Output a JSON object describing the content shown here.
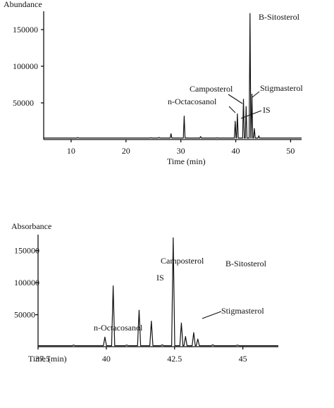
{
  "chart_data": [
    {
      "type": "line",
      "title": "",
      "ylabel": "Abundance",
      "xlabel": "Time (min)",
      "xlim": [
        5,
        52
      ],
      "ylim": [
        0,
        175000
      ],
      "x_ticks": [
        10,
        20,
        30,
        40,
        50
      ],
      "y_ticks": [
        50000,
        100000,
        150000
      ],
      "x_tick_labels": [
        "10",
        "20",
        "30",
        "40",
        "50"
      ],
      "y_tick_labels": [
        "50000",
        "100000",
        "150000"
      ],
      "baseline": 2000,
      "peaks": [
        {
          "x": 11.2,
          "y": 2800
        },
        {
          "x": 24.5,
          "y": 2600
        },
        {
          "x": 26.0,
          "y": 3000
        },
        {
          "x": 28.2,
          "y": 8000
        },
        {
          "x": 30.6,
          "y": 32000
        },
        {
          "x": 33.6,
          "y": 4000
        },
        {
          "x": 36.6,
          "y": 2500
        },
        {
          "x": 39.9,
          "y": 25000,
          "label": "n-Octacosanol"
        },
        {
          "x": 40.3,
          "y": 35000,
          "label": "IS"
        },
        {
          "x": 41.4,
          "y": 55000,
          "label": "Camposterol"
        },
        {
          "x": 41.9,
          "y": 45000
        },
        {
          "x": 42.6,
          "y": 172000,
          "label": "B-Sitosterol"
        },
        {
          "x": 42.95,
          "y": 62000,
          "label": "Stigmasterol"
        },
        {
          "x": 43.4,
          "y": 15000
        },
        {
          "x": 44.2,
          "y": 5000
        }
      ],
      "annotations": [
        "B-Sitosterol",
        "Camposterol",
        "Stigmasterol",
        "n-Octacosanol",
        "IS"
      ]
    },
    {
      "type": "line",
      "title": "",
      "ylabel": "Absorbance",
      "xlabel": "Time (min)",
      "xlim": [
        37.5,
        46.3
      ],
      "ylim": [
        0,
        175000
      ],
      "x_ticks": [
        37.5,
        40,
        42.5,
        45
      ],
      "y_ticks": [
        50000,
        100000,
        150000
      ],
      "x_tick_labels": [
        "37.5",
        "40",
        "42.5",
        "45"
      ],
      "y_tick_labels": [
        "50000",
        "100000",
        "150000"
      ],
      "baseline": 1500,
      "peaks": [
        {
          "x": 38.8,
          "y": 2500
        },
        {
          "x": 39.95,
          "y": 15000,
          "label": "n-Octacosanol"
        },
        {
          "x": 40.25,
          "y": 95000,
          "label": "IS"
        },
        {
          "x": 40.75,
          "y": 2500
        },
        {
          "x": 41.2,
          "y": 57000,
          "label": "Camposterol"
        },
        {
          "x": 41.65,
          "y": 40000,
          "label": "Stigmasterol"
        },
        {
          "x": 42.05,
          "y": 3000
        },
        {
          "x": 42.45,
          "y": 170000,
          "label": "B-Sitosterol"
        },
        {
          "x": 42.75,
          "y": 37000
        },
        {
          "x": 42.9,
          "y": 16000
        },
        {
          "x": 43.2,
          "y": 22000
        },
        {
          "x": 43.35,
          "y": 12000
        },
        {
          "x": 43.9,
          "y": 3000
        },
        {
          "x": 44.8,
          "y": 2500
        }
      ],
      "annotations": [
        "Camposterol",
        "B-Sitosterol",
        "IS",
        "Stigmasterol",
        "n-Octacosanol"
      ]
    }
  ]
}
